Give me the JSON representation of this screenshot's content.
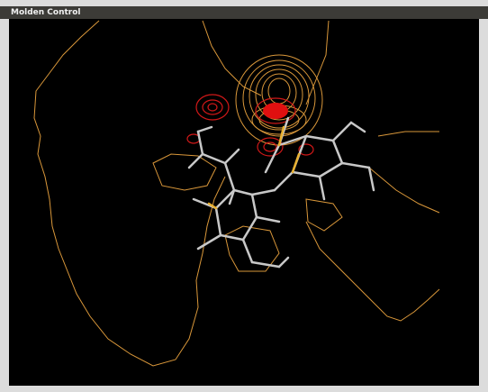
{
  "window": {
    "title": "Molden Control"
  }
}
